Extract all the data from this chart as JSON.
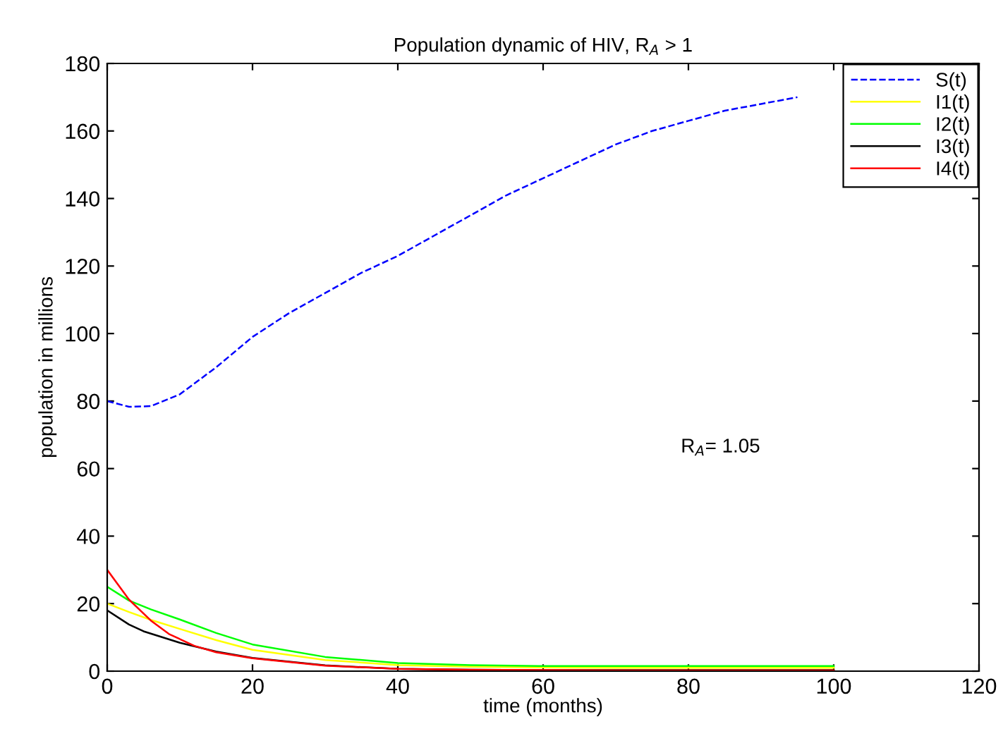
{
  "chart_data": {
    "type": "line",
    "title": "Population dynamic of HIV, R$_{A}$ > 1",
    "xlabel": "time (months)",
    "ylabel": "population in millions",
    "xlim": [
      0,
      120
    ],
    "xticks": [
      0,
      20,
      40,
      60,
      80,
      100,
      120
    ],
    "ylim": [
      0,
      180
    ],
    "yticks": [
      0,
      20,
      40,
      60,
      80,
      100,
      120,
      140,
      160,
      180
    ],
    "grid": false,
    "legend": "top right",
    "annotations": [
      "R$_{A}$= 1.05"
    ],
    "series": [
      {
        "name": "S(t)",
        "color": "#0000ff",
        "line_style": "dashed",
        "x": [
          0,
          3,
          6,
          10,
          15,
          20,
          25,
          30,
          35,
          40,
          45,
          50,
          55,
          60,
          65,
          70,
          75,
          80,
          85,
          90,
          95
        ],
        "values": [
          80,
          78.3,
          78.5,
          82,
          90,
          99,
          106,
          112,
          118,
          123,
          129,
          135,
          141,
          146,
          151,
          156,
          160,
          163,
          166,
          168,
          170
        ]
      },
      {
        "name": "I1(t)",
        "color": "#ffff00",
        "line_style": "solid",
        "x": [
          0,
          3,
          6,
          10,
          15,
          20,
          30,
          40,
          50,
          60,
          70,
          80,
          90,
          100
        ],
        "values": [
          20,
          17.5,
          15.2,
          12.5,
          9.2,
          6.3,
          3.3,
          1.8,
          1.3,
          1.1,
          1,
          1,
          1,
          1
        ]
      },
      {
        "name": "I2(t)",
        "color": "#00ff00",
        "line_style": "solid",
        "x": [
          0,
          3,
          6,
          10,
          15,
          20,
          30,
          40,
          50,
          60,
          70,
          80,
          90,
          100
        ],
        "values": [
          25,
          20.9,
          18.3,
          15.3,
          11.3,
          7.9,
          4.2,
          2.4,
          1.8,
          1.5,
          1.5,
          1.5,
          1.5,
          1.5
        ]
      },
      {
        "name": "I3(t)",
        "color": "#000000",
        "line_style": "solid",
        "x": [
          0,
          3,
          5,
          10,
          15,
          20,
          30,
          40,
          50,
          60,
          70,
          80,
          90,
          100
        ],
        "values": [
          18,
          13.8,
          11.8,
          8.4,
          5.8,
          3.9,
          1.7,
          0.7,
          0.4,
          0.3,
          0.3,
          0.3,
          0.3,
          0.3
        ]
      },
      {
        "name": "I4(t)",
        "color": "#ff0000",
        "line_style": "solid",
        "x": [
          0,
          3,
          6,
          8.5,
          12,
          15,
          20,
          30,
          40,
          50,
          60,
          70,
          80,
          90,
          100
        ],
        "values": [
          30,
          21.2,
          15,
          11,
          7.5,
          5.6,
          3.8,
          1.6,
          0.7,
          0.4,
          0.3,
          0.2,
          0.2,
          0.2,
          0.2
        ]
      }
    ]
  }
}
